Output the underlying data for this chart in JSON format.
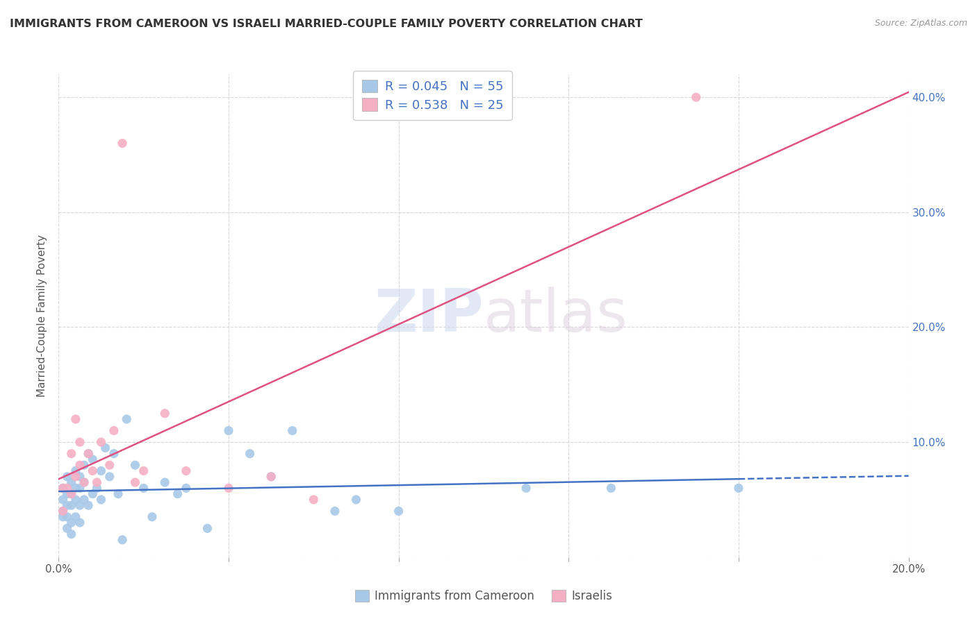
{
  "title": "IMMIGRANTS FROM CAMEROON VS ISRAELI MARRIED-COUPLE FAMILY POVERTY CORRELATION CHART",
  "source": "Source: ZipAtlas.com",
  "ylabel": "Married-Couple Family Poverty",
  "xlim": [
    0.0,
    0.2
  ],
  "ylim": [
    0.0,
    0.42
  ],
  "legend_label1": "Immigrants from Cameroon",
  "legend_label2": "Israelis",
  "color_blue": "#a8c8e8",
  "color_pink": "#f4afc4",
  "line_blue": "#4472c4",
  "line_pink": "#e05080",
  "background_color": "#ffffff",
  "grid_color": "#d8d8d8",
  "cameroon_x": [
    0.001,
    0.001,
    0.001,
    0.001,
    0.002,
    0.002,
    0.002,
    0.002,
    0.002,
    0.003,
    0.003,
    0.003,
    0.003,
    0.003,
    0.004,
    0.004,
    0.004,
    0.004,
    0.005,
    0.005,
    0.005,
    0.005,
    0.006,
    0.006,
    0.006,
    0.007,
    0.007,
    0.008,
    0.008,
    0.009,
    0.01,
    0.01,
    0.011,
    0.012,
    0.013,
    0.014,
    0.015,
    0.016,
    0.018,
    0.02,
    0.022,
    0.025,
    0.028,
    0.03,
    0.035,
    0.04,
    0.045,
    0.05,
    0.055,
    0.065,
    0.07,
    0.08,
    0.11,
    0.13,
    0.16
  ],
  "cameroon_y": [
    0.06,
    0.05,
    0.04,
    0.035,
    0.07,
    0.055,
    0.045,
    0.035,
    0.025,
    0.065,
    0.055,
    0.045,
    0.03,
    0.02,
    0.075,
    0.06,
    0.05,
    0.035,
    0.07,
    0.06,
    0.045,
    0.03,
    0.08,
    0.065,
    0.05,
    0.09,
    0.045,
    0.085,
    0.055,
    0.06,
    0.075,
    0.05,
    0.095,
    0.07,
    0.09,
    0.055,
    0.015,
    0.12,
    0.08,
    0.06,
    0.035,
    0.065,
    0.055,
    0.06,
    0.025,
    0.11,
    0.09,
    0.07,
    0.11,
    0.04,
    0.05,
    0.04,
    0.06,
    0.06,
    0.06
  ],
  "israeli_x": [
    0.001,
    0.001,
    0.002,
    0.003,
    0.003,
    0.004,
    0.004,
    0.005,
    0.005,
    0.006,
    0.007,
    0.008,
    0.009,
    0.01,
    0.012,
    0.013,
    0.015,
    0.018,
    0.02,
    0.025,
    0.03,
    0.04,
    0.05,
    0.06,
    0.15
  ],
  "israeli_y": [
    0.04,
    0.06,
    0.06,
    0.055,
    0.09,
    0.07,
    0.12,
    0.08,
    0.1,
    0.065,
    0.09,
    0.075,
    0.065,
    0.1,
    0.08,
    0.11,
    0.36,
    0.065,
    0.075,
    0.125,
    0.075,
    0.06,
    0.07,
    0.05,
    0.4
  ]
}
